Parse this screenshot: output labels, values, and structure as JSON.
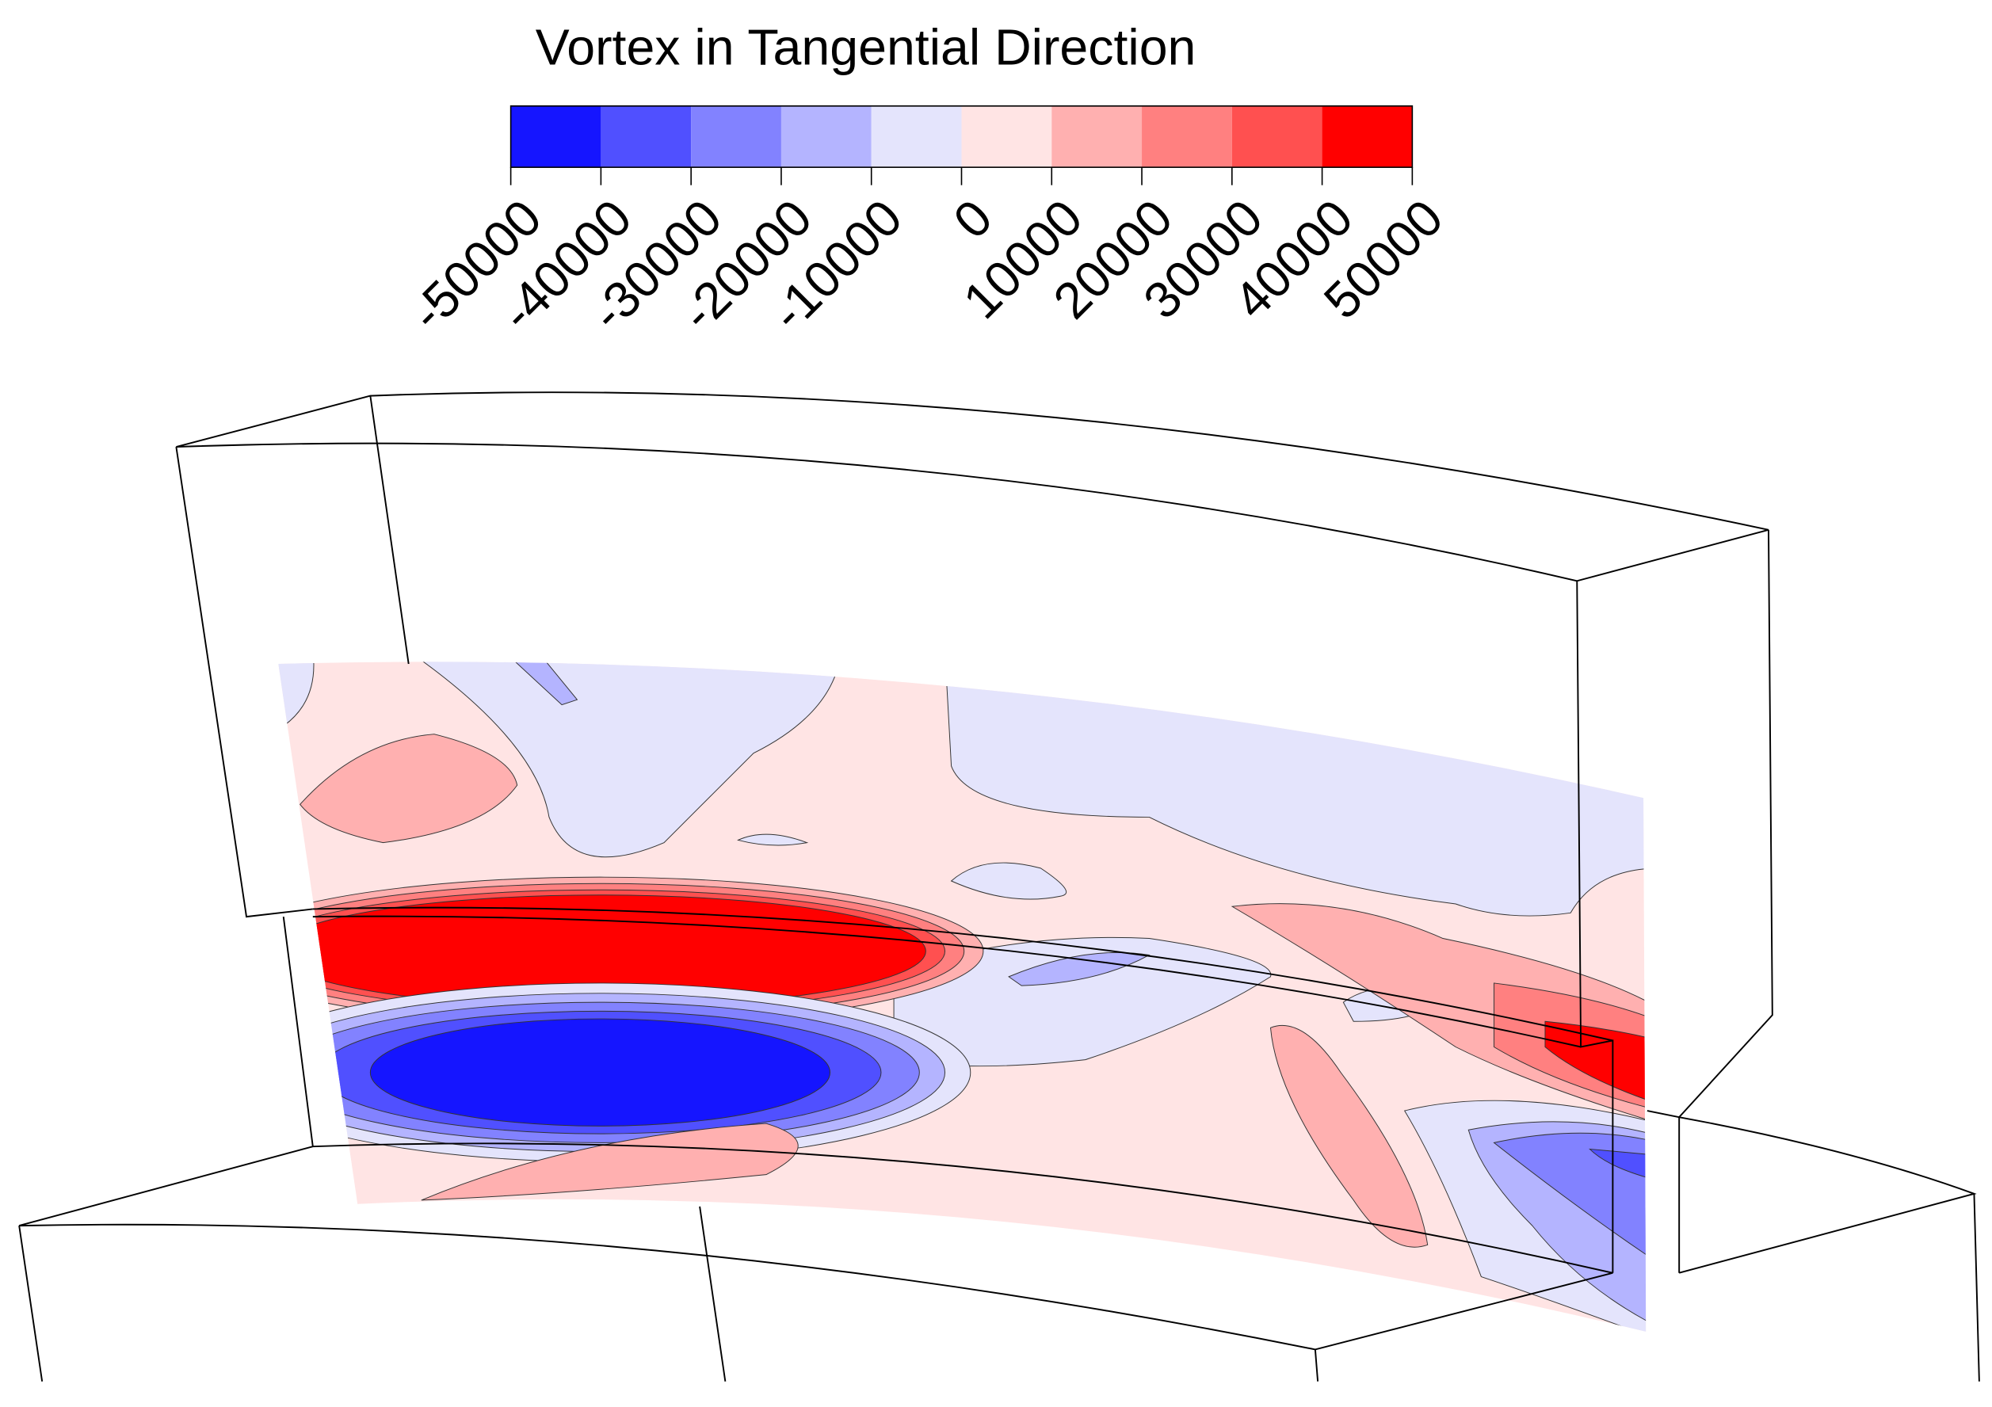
{
  "chart_data": {
    "type": "contour",
    "title": "Vortex in Tangential Direction",
    "levels": [
      -50000,
      -40000,
      -30000,
      -20000,
      -10000,
      0,
      10000,
      20000,
      30000,
      40000,
      50000
    ],
    "colors": [
      "#1515ff",
      "#5050ff",
      "#8282ff",
      "#b4b4ff",
      "#e4e4fc",
      "#ffe4e4",
      "#ffb0b0",
      "#ff8080",
      "#ff5050",
      "#ff0000"
    ]
  }
}
